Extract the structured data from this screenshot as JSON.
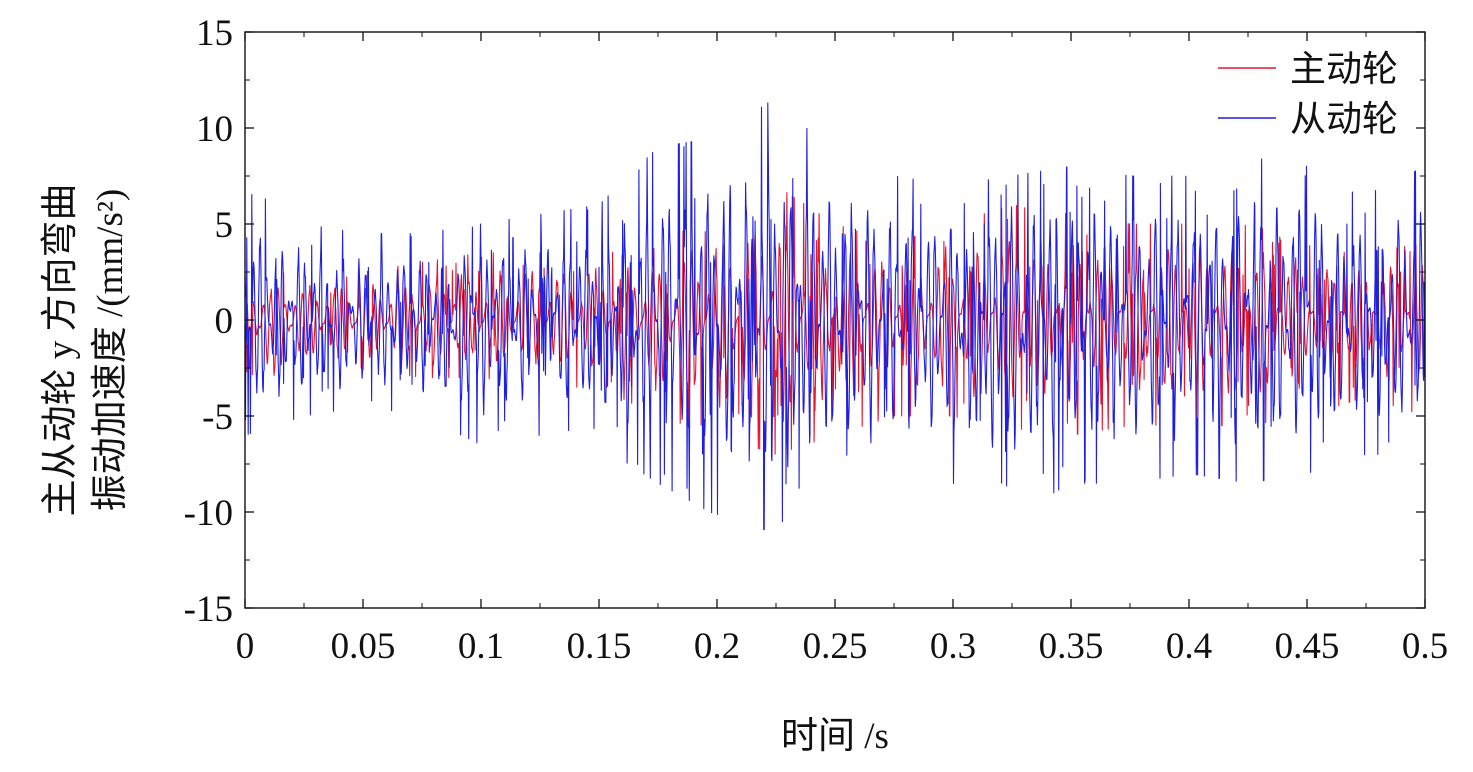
{
  "chart_data": {
    "type": "line",
    "title": "",
    "xlabel": "时间 /s",
    "ylabel_line1": "主从动轮 y 方向弯曲",
    "ylabel_line2": "振动加速度 /(mm/s²)",
    "xlim": [
      0,
      0.5
    ],
    "ylim": [
      -15,
      15
    ],
    "x_ticks": [
      0,
      0.05,
      0.1,
      0.15,
      0.2,
      0.25,
      0.3,
      0.35,
      0.4,
      0.45,
      0.5
    ],
    "x_tick_labels": [
      "0",
      "0.05",
      "0.1",
      "0.15",
      "0.2",
      "0.25",
      "0.3",
      "0.35",
      "0.4",
      "0.45",
      "0.5"
    ],
    "y_ticks": [
      -15,
      -10,
      -5,
      0,
      5,
      10,
      15
    ],
    "y_tick_labels": [
      "-15",
      "-10",
      "-5",
      "0",
      "5",
      "10",
      "15"
    ],
    "grid": false,
    "legend_position": "top-right",
    "series": [
      {
        "name": "主动轮",
        "color": "#e8142b",
        "x": [
          0,
          0.025,
          0.05,
          0.075,
          0.1,
          0.125,
          0.15,
          0.175,
          0.2,
          0.225,
          0.25,
          0.275,
          0.3,
          0.325,
          0.35,
          0.375,
          0.4,
          0.425,
          0.45,
          0.475,
          0.5
        ],
        "upper_envelope": [
          2.5,
          2.5,
          2.5,
          3.0,
          3.5,
          3.5,
          3.5,
          4.0,
          5.5,
          7.0,
          5.0,
          4.0,
          5.0,
          6.0,
          5.5,
          5.0,
          5.0,
          5.0,
          4.0,
          3.5,
          4.0
        ],
        "lower_envelope": [
          -5.0,
          -3.0,
          -2.5,
          -3.0,
          -3.0,
          -3.5,
          -3.5,
          -5.0,
          -6.0,
          -7.0,
          -6.0,
          -5.0,
          -5.0,
          -6.0,
          -6.0,
          -5.5,
          -5.5,
          -5.5,
          -5.0,
          -4.0,
          -5.0
        ]
      },
      {
        "name": "从动轮",
        "color": "#1f1fe0",
        "x": [
          0,
          0.025,
          0.05,
          0.075,
          0.1,
          0.125,
          0.15,
          0.175,
          0.2,
          0.225,
          0.25,
          0.275,
          0.3,
          0.325,
          0.35,
          0.375,
          0.4,
          0.425,
          0.45,
          0.475,
          0.5
        ],
        "upper_envelope": [
          7.0,
          5.0,
          4.5,
          4.5,
          5.0,
          5.5,
          6.0,
          9.0,
          9.5,
          11.6,
          8.5,
          7.5,
          7.0,
          7.5,
          8.0,
          7.5,
          7.5,
          8.5,
          8.0,
          6.5,
          8.0
        ],
        "lower_envelope": [
          -6.0,
          -5.0,
          -4.5,
          -5.0,
          -6.5,
          -6.0,
          -6.5,
          -8.5,
          -10.2,
          -11.1,
          -9.0,
          -7.5,
          -8.5,
          -10.2,
          -8.5,
          -8.5,
          -8.0,
          -8.5,
          -8.0,
          -7.0,
          -7.0
        ]
      }
    ]
  }
}
